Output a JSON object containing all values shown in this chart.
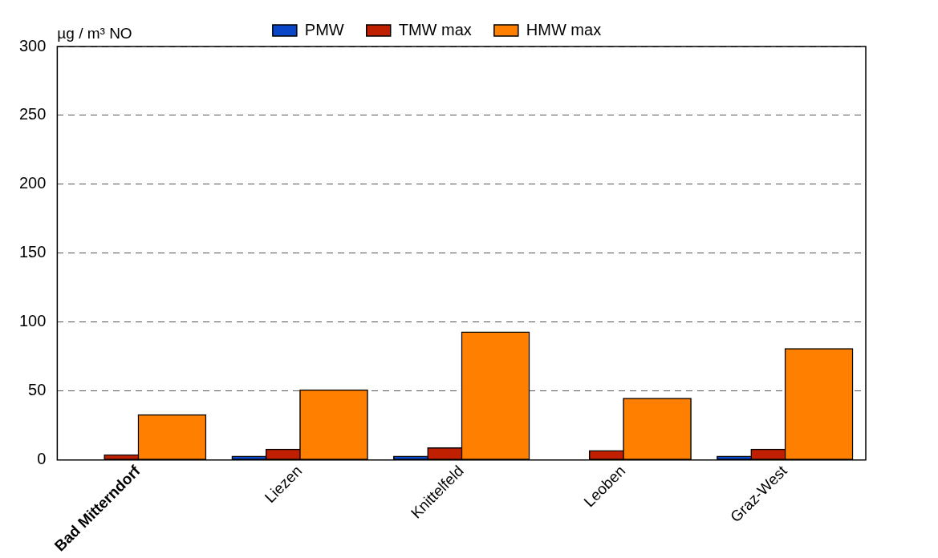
{
  "chart_data": {
    "type": "bar",
    "ylabel": "µg / m³ NO",
    "categories": [
      "Bad Mitterndorf",
      "Liezen",
      "Knittelfeld",
      "Leoben",
      "Graz-West"
    ],
    "series": [
      {
        "name": "PMW",
        "color": "#0a46c8",
        "values": [
          null,
          3,
          3,
          null,
          3
        ]
      },
      {
        "name": "TMW max",
        "color": "#c02000",
        "values": [
          4,
          8,
          9,
          7,
          8
        ]
      },
      {
        "name": "HMW max",
        "color": "#ff8000",
        "values": [
          33,
          51,
          93,
          45,
          81
        ]
      }
    ],
    "ylim": [
      0,
      300
    ],
    "yticks": [
      0,
      50,
      100,
      150,
      200,
      250,
      300
    ],
    "grid": "y",
    "legend": "top"
  }
}
